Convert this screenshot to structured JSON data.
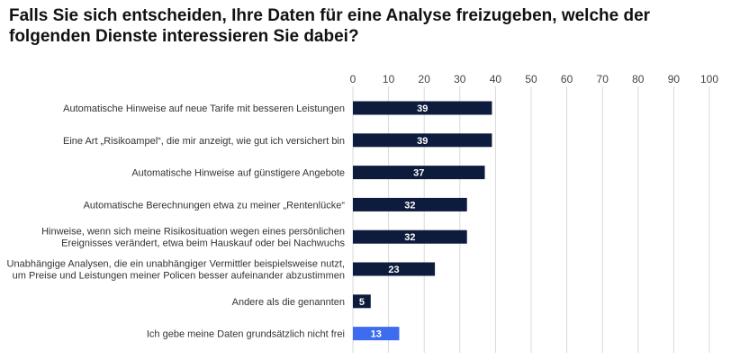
{
  "chart_data": {
    "type": "bar",
    "orientation": "horizontal",
    "title": "Falls Sie sich entscheiden, Ihre Daten für eine Analyse freizugeben, welche der folgenden Dienste interessieren Sie dabei?",
    "categories": [
      [
        "Automatische Hinweise auf neue Tarife mit besseren Leistungen"
      ],
      [
        "Eine Art „Risikoampel“, die mir anzeigt, wie gut ich versichert bin"
      ],
      [
        "Automatische Hinweise auf günstigere Angebote"
      ],
      [
        "Automatische Berechnungen etwa zu meiner „Rentenlücke“"
      ],
      [
        "Hinweise, wenn sich meine Risikosituation wegen eines persönlichen",
        "Ereignisses verändert, etwa beim Hauskauf oder bei Nachwuchs"
      ],
      [
        "Unabhängige Analysen, die ein unabhängiger Vermittler beispielsweise nutzt,",
        "um Preise und Leistungen meiner Policen besser aufeinander abzustimmen"
      ],
      [
        "Andere als die genannten"
      ],
      [
        "Ich gebe meine Daten grundsätzlich nicht frei"
      ]
    ],
    "values": [
      39,
      39,
      37,
      32,
      32,
      23,
      5,
      13
    ],
    "value_labels": [
      "39",
      "39",
      "37",
      "32",
      "32",
      "23",
      "5",
      "13"
    ],
    "xlim": [
      0,
      100
    ],
    "ticks": [
      "0",
      "10",
      "20",
      "30",
      "40",
      "50",
      "60",
      "70",
      "80",
      "90",
      "100"
    ],
    "tick_values": [
      0,
      10,
      20,
      30,
      40,
      50,
      60,
      70,
      80,
      90,
      100
    ],
    "grid": true,
    "colors": {
      "bar": "#0d1b3d",
      "highlight": "#3d6cf0",
      "grid": "#d9d9d9"
    },
    "highlight_index": 7
  }
}
